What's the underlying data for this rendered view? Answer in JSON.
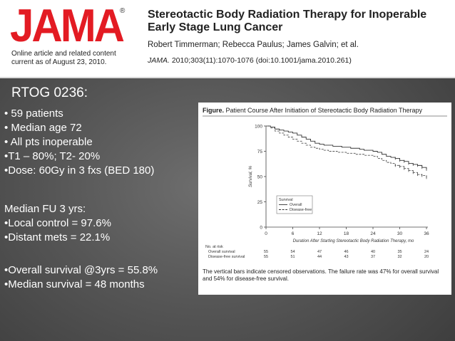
{
  "header": {
    "logo_text": "JAMA",
    "logo_reg": "®",
    "online_note_line1": "Online article and related content",
    "online_note_line2": "current as of August 23, 2010.",
    "title_line1": "Stereotactic Body Radiation Therapy for Inoperable",
    "title_line2": "Early Stage Lung Cancer",
    "authors": "Robert Timmerman; Rebecca Paulus; James Galvin; et al.",
    "citation_journal": "JAMA.",
    "citation_rest": " 2010;303(11):1070-1076 (doi:10.1001/jama.2010.261)"
  },
  "slide": {
    "heading": "RTOG 0236:",
    "group1": [
      "• 59 patients",
      "• Median age 72",
      "• All pts inoperable",
      "•T1 – 80%;  T2- 20%",
      "•Dose: 60Gy in 3 fxs (BED 180)"
    ],
    "group2": [
      "Median FU 3 yrs:",
      "•Local control = 97.6%",
      "•Distant mets = 22.1%"
    ],
    "group3": [
      "•Overall survival @3yrs = 55.8%",
      "•Median survival = 48 months"
    ]
  },
  "figure": {
    "title_bold": "Figure.",
    "title_rest": " Patient Course After Initiation of Stereotactic Body Radiation Therapy",
    "caption": "The vertical bars indicate censored observations. The failure rate was 47% for overall survival and 54% for disease-free survival.",
    "risk_header": "No. at risk",
    "risk_rows": [
      {
        "label": "Overall survival",
        "values": [
          "55",
          "54",
          "47",
          "46",
          "40",
          "35",
          "24"
        ]
      },
      {
        "label": "Disease-free survival",
        "values": [
          "55",
          "51",
          "44",
          "43",
          "37",
          "32",
          "20"
        ]
      }
    ]
  },
  "chart_data": {
    "type": "line",
    "title": "Patient Course After Initiation of Stereotactic Body Radiation Therapy",
    "xlabel": "Duration After Starting Stereotactic Body Radiation Therapy, mo",
    "ylabel": "Survival, %",
    "xlim": [
      0,
      36
    ],
    "ylim": [
      0,
      100
    ],
    "x_ticks": [
      "0",
      "6",
      "12",
      "18",
      "24",
      "30",
      "36"
    ],
    "y_ticks": [
      "0",
      "25",
      "50",
      "75",
      "100"
    ],
    "legend_title": "Survival",
    "legend_position": "lower-left",
    "series": [
      {
        "name": "Overall",
        "style": "solid",
        "x": [
          0,
          1,
          2,
          3,
          4,
          5,
          6,
          7,
          8,
          9,
          10,
          11,
          12,
          13,
          15,
          17,
          19,
          21,
          22,
          24,
          25,
          26,
          27,
          28,
          29,
          30,
          31,
          32,
          33,
          34,
          35,
          36
        ],
        "y": [
          100,
          99,
          97,
          96,
          95,
          94,
          93,
          91,
          89,
          87,
          85,
          83,
          82,
          81,
          80,
          79,
          78,
          77,
          76,
          75,
          74,
          72,
          70,
          69,
          68,
          66,
          65,
          63,
          62,
          61,
          59,
          57
        ]
      },
      {
        "name": "Disease-free",
        "style": "dashed",
        "x": [
          0,
          1,
          2,
          3,
          4,
          5,
          6,
          7,
          8,
          9,
          10,
          11,
          12,
          13,
          14,
          16,
          18,
          20,
          22,
          24,
          25,
          26,
          27,
          28,
          29,
          30,
          31,
          32,
          33,
          34,
          35,
          36
        ],
        "y": [
          100,
          98,
          95,
          93,
          91,
          89,
          87,
          85,
          83,
          81,
          79,
          78,
          77,
          76,
          75,
          74,
          73,
          72,
          71,
          70,
          68,
          66,
          64,
          63,
          61,
          60,
          58,
          56,
          54,
          52,
          51,
          49
        ]
      }
    ]
  }
}
